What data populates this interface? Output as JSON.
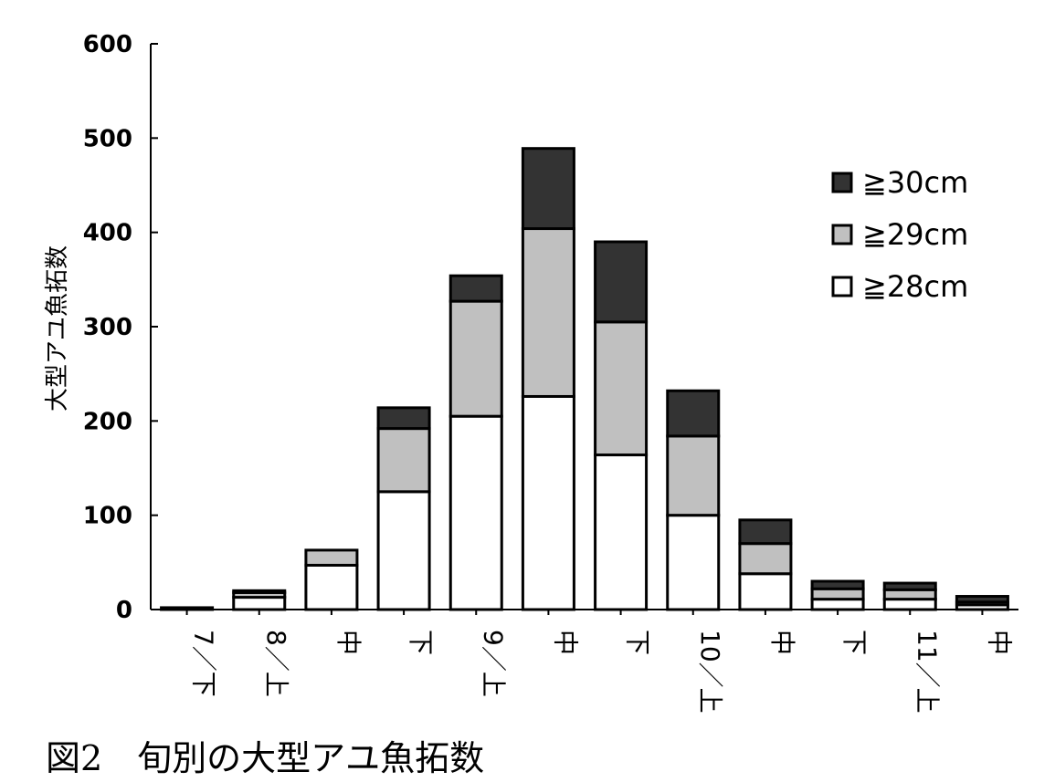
{
  "chart_data": {
    "type": "bar",
    "stacked": true,
    "title": "",
    "xlabel": "",
    "ylabel": "大型アユ魚拓数",
    "ylim": [
      0,
      600
    ],
    "yticks": [
      0,
      100,
      200,
      300,
      400,
      500,
      600
    ],
    "grid": false,
    "legend_position": "right",
    "categories": [
      "7／下",
      "8／上",
      "中",
      "下",
      "9／上",
      "中",
      "下",
      "10／上",
      "中",
      "下",
      "11／上",
      "中"
    ],
    "series": [
      {
        "name": "≧28cm",
        "color": "#ffffff",
        "values": [
          2,
          13,
          47,
          125,
          205,
          226,
          164,
          100,
          38,
          11,
          11,
          5
        ]
      },
      {
        "name": "≧29cm",
        "color": "#c0c0c0",
        "values": [
          0,
          5,
          16,
          67,
          122,
          178,
          141,
          84,
          32,
          11,
          10,
          3
        ]
      },
      {
        "name": "≧30cm",
        "color": "#333333",
        "values": [
          0,
          2,
          0,
          22,
          27,
          85,
          85,
          48,
          25,
          8,
          7,
          6
        ]
      }
    ]
  },
  "caption": "図2　旬別の大型アユ魚拓数"
}
